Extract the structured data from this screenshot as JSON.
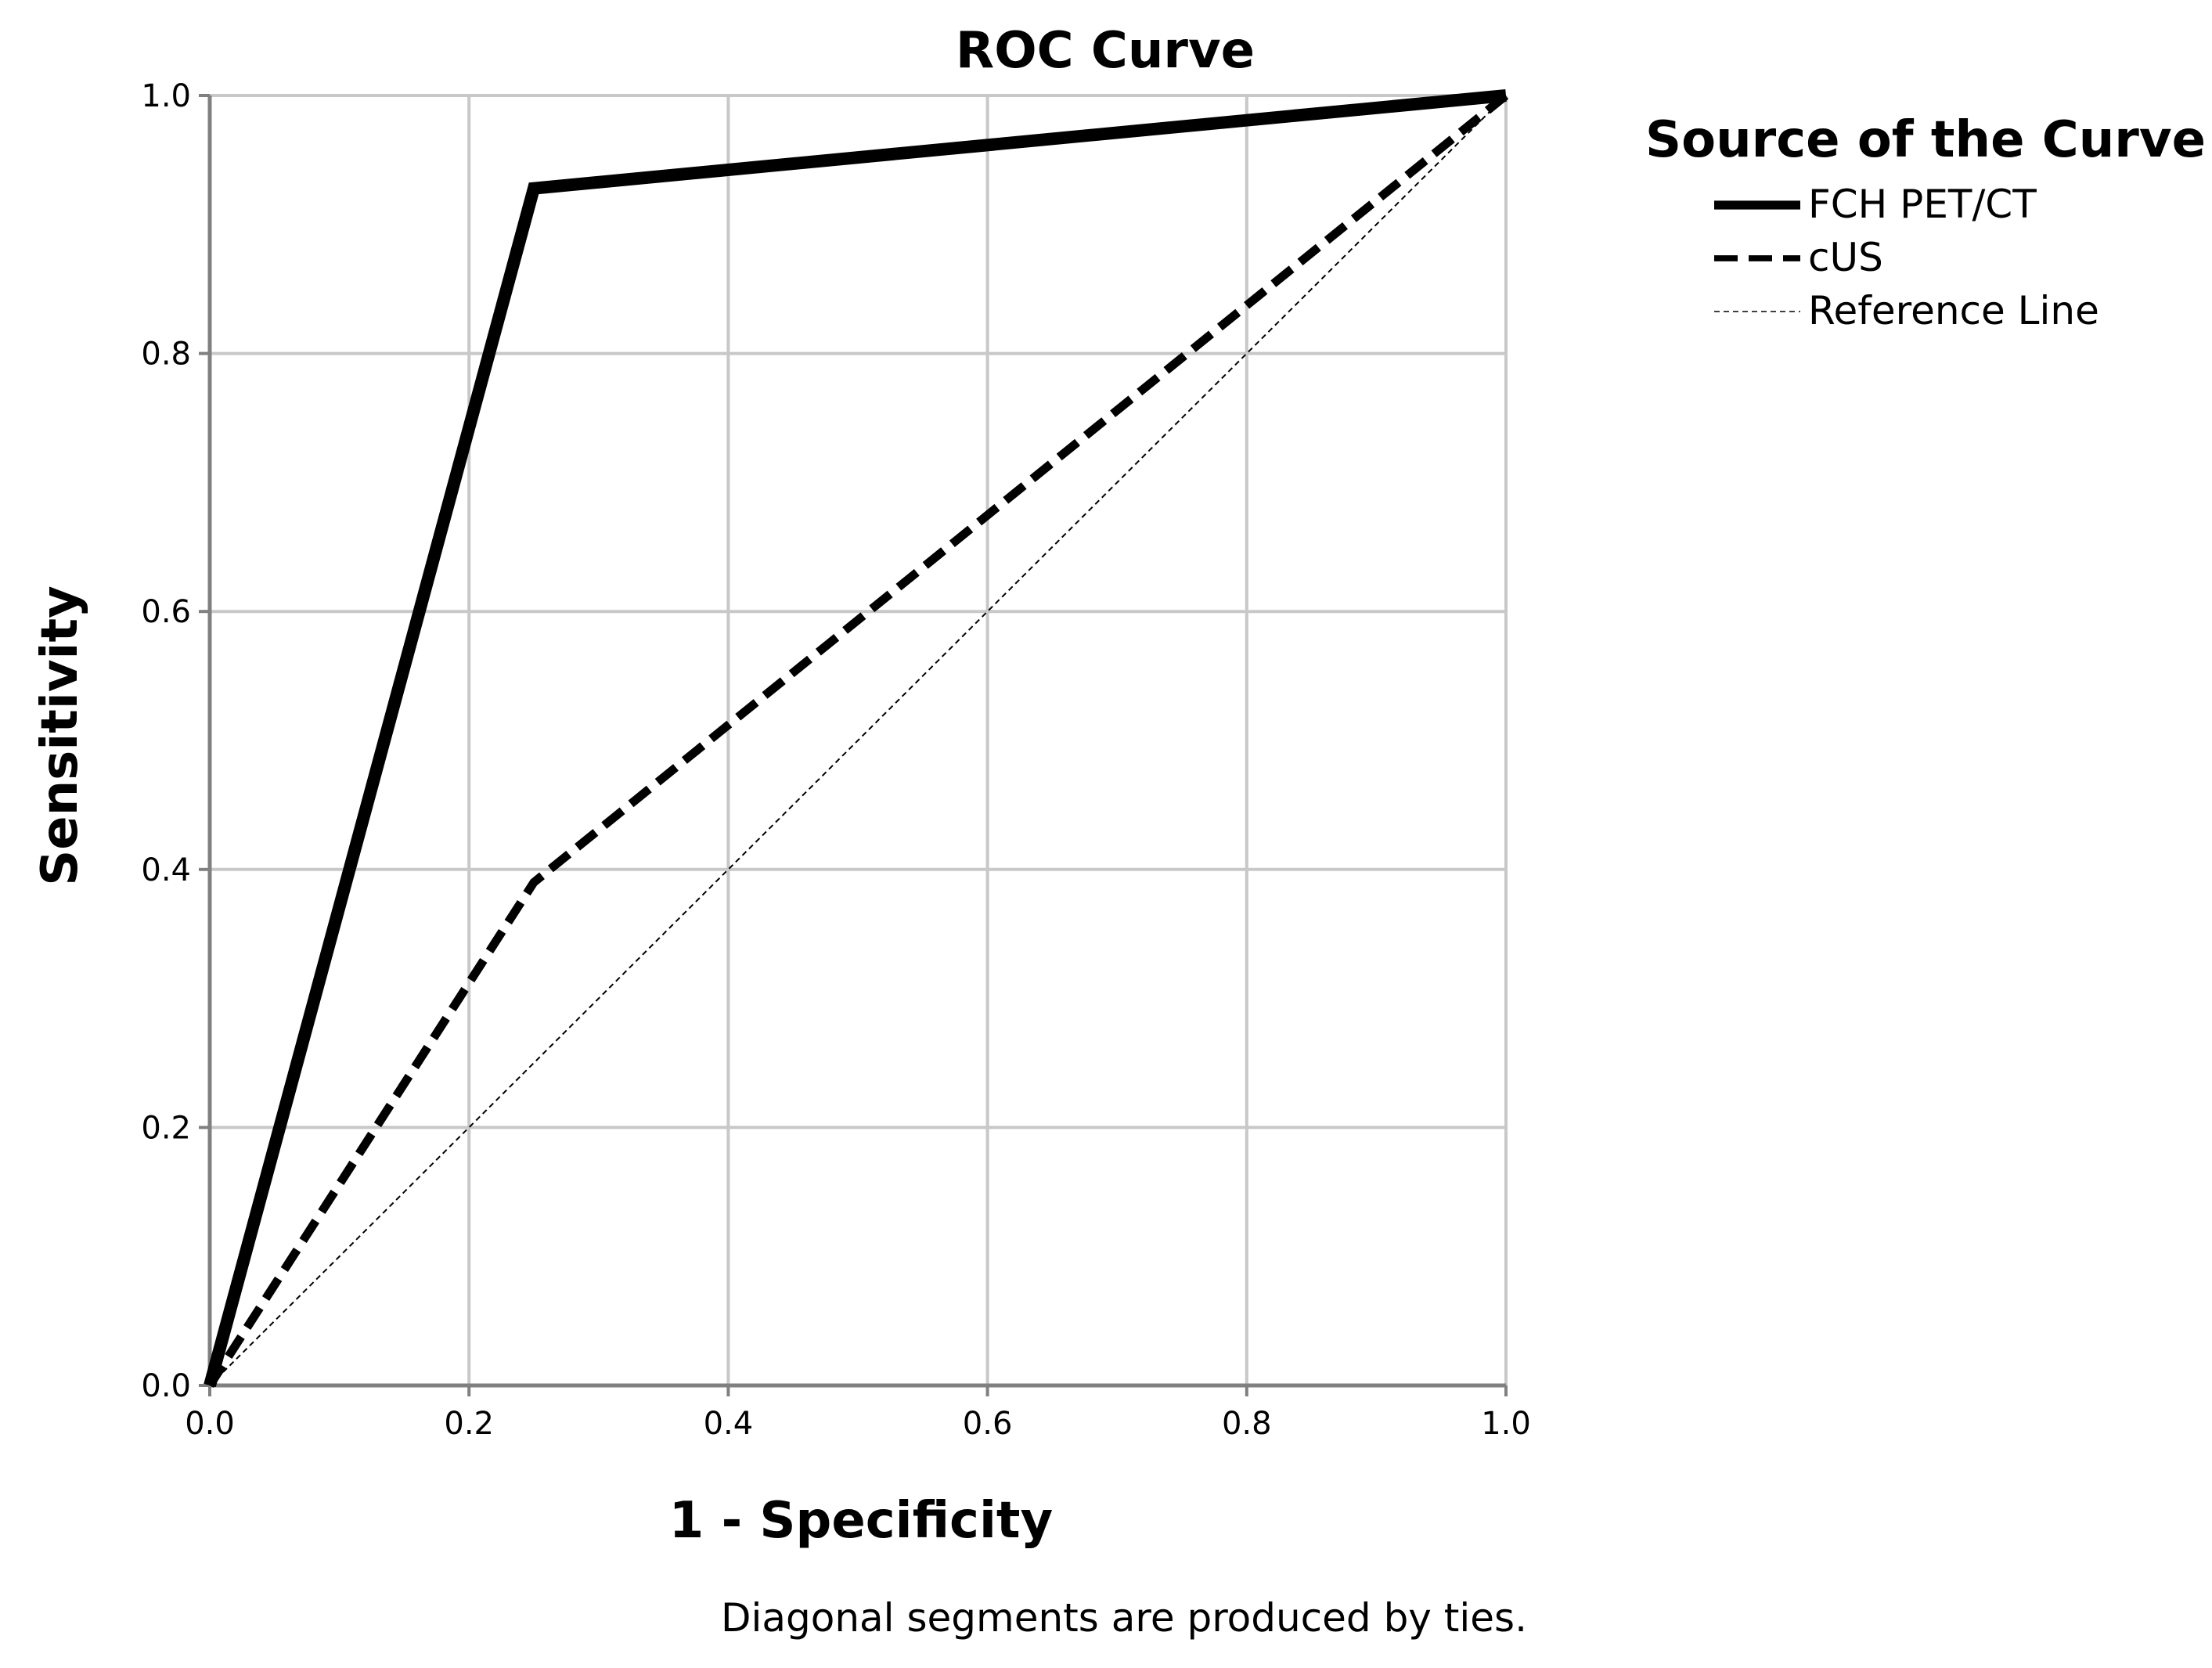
{
  "chart_data": {
    "type": "line",
    "title": "ROC Curve",
    "xlabel": "1 - Specificity",
    "ylabel": "Sensitivity",
    "xlim": [
      0,
      1
    ],
    "ylim": [
      0,
      1
    ],
    "xticks": [
      "0.0",
      "0.2",
      "0.4",
      "0.6",
      "0.8",
      "1.0"
    ],
    "yticks": [
      "0.0",
      "0.2",
      "0.4",
      "0.6",
      "0.8",
      "1.0"
    ],
    "grid": true,
    "legend_title": "Source of the Curve",
    "legend_position": "right",
    "footnote": "Diagonal segments are produced by ties.",
    "series": [
      {
        "name": "FCH PET/CT",
        "style": "solid-thick",
        "x": [
          0.0,
          0.25,
          1.0
        ],
        "y": [
          0.0,
          0.928,
          1.0
        ]
      },
      {
        "name": "cUS",
        "style": "dashed-thick",
        "x": [
          0.0,
          0.25,
          1.0
        ],
        "y": [
          0.0,
          0.39,
          1.0
        ]
      },
      {
        "name": "Reference Line",
        "style": "dashed-thin",
        "x": [
          0.0,
          1.0
        ],
        "y": [
          0.0,
          1.0
        ]
      }
    ],
    "colors": {
      "line": "#000000",
      "grid": "#c8c8c8",
      "axis": "#808080"
    }
  }
}
